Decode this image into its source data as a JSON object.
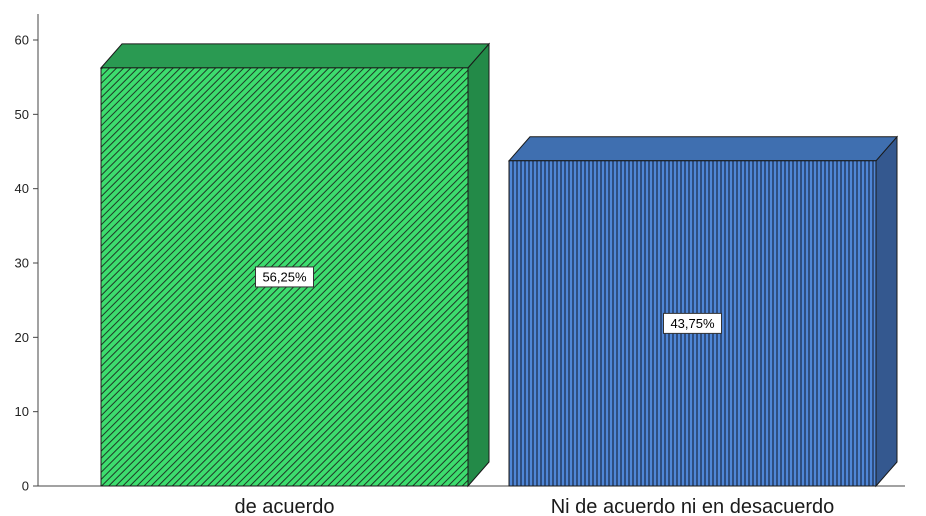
{
  "chart_data": {
    "type": "bar",
    "categories": [
      "de acuerdo",
      "Ni de acuerdo ni en desacuerdo"
    ],
    "values": [
      56.25,
      43.75
    ],
    "data_labels": [
      "56,25%",
      "43,75%"
    ],
    "ylim": [
      0,
      60
    ],
    "yticks": [
      "0",
      "10",
      "20",
      "30",
      "40",
      "50",
      "60"
    ],
    "title": "",
    "xlabel": "",
    "ylabel": "",
    "grid": false,
    "style": "3d",
    "colors": {
      "bar_1_face": "#3ddc6e",
      "bar_1_side": "#238a48",
      "bar_1_top": "#2a9a52",
      "bar_1_hatch": "#1e3a27",
      "bar_2_face": "#4f86d6",
      "bar_2_side": "#34588f",
      "bar_2_top": "#3f6fb0",
      "bar_2_hatch": "#1d2f52",
      "axis": "#444444"
    }
  }
}
